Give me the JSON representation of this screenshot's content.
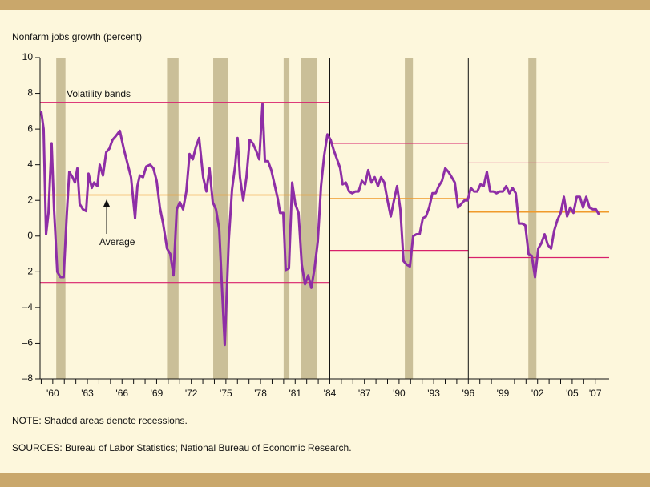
{
  "chart_data": {
    "type": "line",
    "title": "Nonfarm jobs growth (percent)",
    "note": "NOTE: Shaded areas denote recessions.",
    "sources": "SOURCES: Bureau of Labor Statistics; National Bureau of Economic Research.",
    "annotations": {
      "bands": "Volatility bands",
      "average": "Average"
    },
    "color": "#8e2ea6",
    "band_color": "#d8206c",
    "average_color": "#f09a2a",
    "recession_color": "#cabf98",
    "xlim": [
      1958.9,
      2008.2
    ],
    "ylim": [
      -8,
      10
    ],
    "yticks": [
      {
        "value": -8,
        "label": "–8"
      },
      {
        "value": -6,
        "label": "–6"
      },
      {
        "value": -4,
        "label": "–4"
      },
      {
        "value": -2,
        "label": "–2"
      },
      0,
      2,
      4,
      6,
      8,
      10
    ],
    "xticks": [
      {
        "value": 1960,
        "label": "'60"
      },
      {
        "value": 1963,
        "label": "'63"
      },
      {
        "value": 1966,
        "label": "'66"
      },
      {
        "value": 1969,
        "label": "'69"
      },
      {
        "value": 1972,
        "label": "'72"
      },
      {
        "value": 1975,
        "label": "'75"
      },
      {
        "value": 1978,
        "label": "'78"
      },
      {
        "value": 1981,
        "label": "'81"
      },
      {
        "value": 1984,
        "label": "'84"
      },
      {
        "value": 1987,
        "label": "'87"
      },
      {
        "value": 1990,
        "label": "'90"
      },
      {
        "value": 1993,
        "label": "'93"
      },
      {
        "value": 1996,
        "label": "'96"
      },
      {
        "value": 1999,
        "label": "'99"
      },
      {
        "value": 2002,
        "label": "'02"
      },
      {
        "value": 2005,
        "label": "'05"
      },
      {
        "value": 2007,
        "label": "'07"
      }
    ],
    "xminorticks": [
      1959,
      1960,
      1961,
      1962,
      1963,
      1964,
      1965,
      1966,
      1967,
      1968,
      1969,
      1970,
      1971,
      1972,
      1973,
      1974,
      1975,
      1976,
      1977,
      1978,
      1979,
      1980,
      1981,
      1982,
      1983,
      1984,
      1985,
      1986,
      1987,
      1988,
      1989,
      1990,
      1991,
      1992,
      1993,
      1994,
      1995,
      1996,
      1997,
      1998,
      1999,
      2000,
      2001,
      2002,
      2003,
      2004,
      2005,
      2006,
      2007
    ],
    "recessions": [
      [
        1960.3,
        1961.1
      ],
      [
        1969.9,
        1970.9
      ],
      [
        1973.9,
        1975.2
      ],
      [
        1980.0,
        1980.5
      ],
      [
        1981.5,
        1982.9
      ],
      [
        1990.5,
        1991.2
      ],
      [
        2001.2,
        2001.9
      ]
    ],
    "regimes": [
      {
        "range": [
          1958.9,
          1984
        ],
        "upper": 7.5,
        "lower": -2.6,
        "average": 2.3
      },
      {
        "range": [
          1984,
          1996
        ],
        "upper": 5.2,
        "lower": -0.8,
        "average": 2.1
      },
      {
        "range": [
          1996,
          2008.2
        ],
        "upper": 4.1,
        "lower": -1.2,
        "average": 1.35
      }
    ],
    "x": [
      1959.0,
      1959.21,
      1959.42,
      1959.63,
      1959.9,
      1960.11,
      1960.39,
      1960.67,
      1960.94,
      1961.22,
      1961.43,
      1961.71,
      1961.92,
      1962.13,
      1962.33,
      1962.61,
      1962.89,
      1963.1,
      1963.38,
      1963.58,
      1963.86,
      1964.07,
      1964.35,
      1964.63,
      1964.9,
      1965.18,
      1965.46,
      1965.81,
      1966.15,
      1966.5,
      1966.78,
      1967.13,
      1967.33,
      1967.54,
      1967.82,
      1968.1,
      1968.44,
      1968.72,
      1969.0,
      1969.28,
      1969.56,
      1969.9,
      1970.18,
      1970.46,
      1970.74,
      1971.01,
      1971.29,
      1971.57,
      1971.85,
      1972.13,
      1972.4,
      1972.68,
      1973.03,
      1973.31,
      1973.58,
      1973.86,
      1974.14,
      1974.42,
      1974.63,
      1974.9,
      1975.25,
      1975.53,
      1975.81,
      1976.01,
      1976.22,
      1976.5,
      1976.78,
      1977.06,
      1977.33,
      1977.61,
      1977.89,
      1978.17,
      1978.38,
      1978.65,
      1978.93,
      1979.21,
      1979.49,
      1979.69,
      1979.97,
      1980.18,
      1980.46,
      1980.74,
      1981.01,
      1981.29,
      1981.57,
      1981.85,
      1982.13,
      1982.4,
      1982.68,
      1982.96,
      1983.24,
      1983.51,
      1983.79,
      1984.07,
      1984.35,
      1984.63,
      1984.9,
      1985.11,
      1985.39,
      1985.67,
      1985.94,
      1986.22,
      1986.5,
      1986.78,
      1987.06,
      1987.33,
      1987.61,
      1987.89,
      1988.17,
      1988.44,
      1988.72,
      1989.0,
      1989.28,
      1989.56,
      1989.83,
      1990.11,
      1990.39,
      1990.67,
      1990.94,
      1991.22,
      1991.5,
      1991.78,
      1992.06,
      1992.33,
      1992.61,
      1992.89,
      1993.17,
      1993.44,
      1993.72,
      1994.0,
      1994.28,
      1994.56,
      1994.83,
      1995.11,
      1995.39,
      1995.67,
      1995.94,
      1996.22,
      1996.5,
      1996.78,
      1997.06,
      1997.33,
      1997.61,
      1997.89,
      1998.17,
      1998.44,
      1998.72,
      1999.0,
      1999.28,
      1999.56,
      1999.83,
      2000.11,
      2000.39,
      2000.67,
      2000.94,
      2001.22,
      2001.5,
      2001.78,
      2002.06,
      2002.33,
      2002.61,
      2002.89,
      2003.17,
      2003.44,
      2003.72,
      2004.0,
      2004.28,
      2004.56,
      2004.83,
      2005.11,
      2005.39,
      2005.67,
      2005.94,
      2006.22,
      2006.5,
      2006.78,
      2007.06,
      2007.33
    ],
    "values": [
      7.0,
      6.0,
      0.1,
      1.3,
      5.2,
      1.5,
      -2.0,
      -2.3,
      -2.3,
      1.3,
      3.6,
      3.3,
      3.0,
      3.8,
      1.8,
      1.5,
      1.4,
      3.5,
      2.7,
      3.0,
      2.8,
      4.0,
      3.4,
      4.7,
      4.9,
      5.4,
      5.6,
      5.9,
      4.9,
      4.0,
      3.3,
      1.0,
      2.8,
      3.4,
      3.3,
      3.9,
      4.0,
      3.8,
      3.1,
      1.6,
      0.7,
      -0.7,
      -1.0,
      -2.2,
      1.5,
      1.9,
      1.5,
      2.5,
      4.6,
      4.3,
      5.0,
      5.5,
      3.3,
      2.5,
      3.8,
      1.9,
      1.5,
      0.4,
      -2.5,
      -6.1,
      -0.2,
      2.6,
      4.0,
      5.5,
      3.3,
      2.0,
      3.3,
      5.4,
      5.2,
      4.8,
      4.3,
      7.4,
      4.2,
      4.2,
      3.7,
      2.9,
      2.1,
      1.3,
      1.3,
      -1.9,
      -1.8,
      3.0,
      1.8,
      1.3,
      -1.6,
      -2.7,
      -2.2,
      -2.9,
      -1.8,
      -0.3,
      2.8,
      4.5,
      5.7,
      5.4,
      4.8,
      4.3,
      3.8,
      2.9,
      3.0,
      2.5,
      2.4,
      2.5,
      2.5,
      3.1,
      2.9,
      3.7,
      3.0,
      3.3,
      2.8,
      3.3,
      3.0,
      2.0,
      1.1,
      2.0,
      2.8,
      1.5,
      -1.4,
      -1.6,
      -1.7,
      0.0,
      0.1,
      0.1,
      1.0,
      1.1,
      1.6,
      2.4,
      2.4,
      2.8,
      3.1,
      3.8,
      3.6,
      3.3,
      3.0,
      1.6,
      1.8,
      2.0,
      2.0,
      2.7,
      2.5,
      2.5,
      2.9,
      2.8,
      3.6,
      2.5,
      2.5,
      2.4,
      2.5,
      2.5,
      2.8,
      2.4,
      2.7,
      2.4,
      0.7,
      0.7,
      0.6,
      -1.0,
      -1.1,
      -2.3,
      -0.7,
      -0.4,
      0.1,
      -0.5,
      -0.7,
      0.3,
      0.9,
      1.3,
      2.2,
      1.1,
      1.6,
      1.3,
      2.2,
      2.2,
      1.6,
      2.2,
      1.6,
      1.5,
      1.5,
      1.2
    ]
  }
}
